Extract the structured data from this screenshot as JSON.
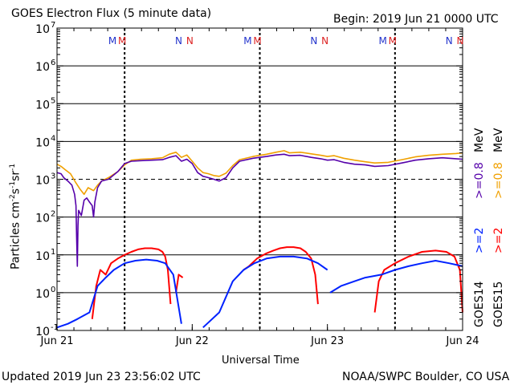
{
  "header": {
    "title": "GOES Electron Flux (5 minute data)",
    "begin": "Begin: 2019 Jun 21 0000 UTC"
  },
  "footer": {
    "updated": "Updated 2019 Jun 23 23:56:02 UTC",
    "credit": "NOAA/SWPC Boulder, CO USA"
  },
  "colors": {
    "goes14_high": "#5500aa",
    "goes15_high": "#f0a000",
    "goes14_low": "#0022ff",
    "goes15_low": "#ff0000",
    "marker_m14": "#2233cc",
    "marker_m15": "#dd2222"
  },
  "legend": {
    "goes14_label": "GOES14",
    "goes15_label": "GOES15",
    "goes14_low": ">=2",
    "goes15_low": ">=2",
    "goes14_high": ">=0.8",
    "goes15_high": ">=0.8",
    "unit": "MeV"
  },
  "chart_data": {
    "type": "line",
    "title": "GOES Electron Flux (5 minute data)",
    "xlabel": "Universal Time",
    "ylabel": "Particles cm-2s-1sr-1",
    "y_scale": "log",
    "ylim": [
      0.1,
      10000000
    ],
    "x_range_days": [
      0,
      3
    ],
    "x_ticks": [
      {
        "day": 0,
        "label": "Jun 21"
      },
      {
        "day": 1,
        "label": "Jun 22"
      },
      {
        "day": 2,
        "label": "Jun 23"
      },
      {
        "day": 3,
        "label": "Jun 24"
      }
    ],
    "y_ticks": [
      {
        "exp": -1,
        "label": "10"
      },
      {
        "exp": 0,
        "label": "10"
      },
      {
        "exp": 1,
        "label": "10"
      },
      {
        "exp": 2,
        "label": "10"
      },
      {
        "exp": 3,
        "label": "10"
      },
      {
        "exp": 4,
        "label": "10"
      },
      {
        "exp": 5,
        "label": "10"
      },
      {
        "exp": 6,
        "label": "10"
      },
      {
        "exp": 7,
        "label": "10"
      }
    ],
    "alert_threshold": 1000,
    "grid": "horizontal per decade",
    "noon_lines_days": [
      0.5,
      1.5,
      2.5
    ],
    "local_markers": [
      {
        "day": 0.44,
        "label": "M",
        "sat": "GOES14"
      },
      {
        "day": 0.5,
        "label": "M",
        "sat": "GOES15"
      },
      {
        "day": 0.93,
        "label": "N",
        "sat": "GOES14"
      },
      {
        "day": 1.0,
        "label": "N",
        "sat": "GOES15"
      },
      {
        "day": 1.44,
        "label": "M",
        "sat": "GOES14"
      },
      {
        "day": 1.5,
        "label": "M",
        "sat": "GOES15"
      },
      {
        "day": 1.93,
        "label": "N",
        "sat": "GOES14"
      },
      {
        "day": 2.0,
        "label": "N",
        "sat": "GOES15"
      },
      {
        "day": 2.44,
        "label": "M",
        "sat": "GOES14"
      },
      {
        "day": 2.5,
        "label": "M",
        "sat": "GOES15"
      },
      {
        "day": 2.93,
        "label": "N",
        "sat": "GOES14"
      },
      {
        "day": 3.0,
        "label": "N",
        "sat": "GOES15"
      }
    ],
    "series": [
      {
        "name": "GOES15 >=0.8 MeV",
        "color": "#f0a000",
        "points": [
          [
            0,
            2500
          ],
          [
            0.03,
            2200
          ],
          [
            0.06,
            1800
          ],
          [
            0.1,
            1400
          ],
          [
            0.14,
            800
          ],
          [
            0.17,
            550
          ],
          [
            0.2,
            400
          ],
          [
            0.23,
            600
          ],
          [
            0.27,
            500
          ],
          [
            0.3,
            700
          ],
          [
            0.33,
            900
          ],
          [
            0.38,
            1100
          ],
          [
            0.45,
            1600
          ],
          [
            0.5,
            2400
          ],
          [
            0.55,
            3200
          ],
          [
            0.62,
            3400
          ],
          [
            0.7,
            3500
          ],
          [
            0.78,
            3700
          ],
          [
            0.83,
            4600
          ],
          [
            0.88,
            5200
          ],
          [
            0.92,
            3800
          ],
          [
            0.96,
            4400
          ],
          [
            1.0,
            3000
          ],
          [
            1.04,
            2000
          ],
          [
            1.08,
            1500
          ],
          [
            1.12,
            1400
          ],
          [
            1.16,
            1250
          ],
          [
            1.2,
            1200
          ],
          [
            1.25,
            1450
          ],
          [
            1.3,
            2300
          ],
          [
            1.35,
            3300
          ],
          [
            1.45,
            4000
          ],
          [
            1.55,
            4600
          ],
          [
            1.62,
            5200
          ],
          [
            1.68,
            5700
          ],
          [
            1.72,
            5000
          ],
          [
            1.8,
            5200
          ],
          [
            1.88,
            4700
          ],
          [
            1.95,
            4300
          ],
          [
            2.0,
            4000
          ],
          [
            2.05,
            4200
          ],
          [
            2.12,
            3600
          ],
          [
            2.2,
            3200
          ],
          [
            2.28,
            2900
          ],
          [
            2.35,
            2700
          ],
          [
            2.45,
            2800
          ],
          [
            2.55,
            3300
          ],
          [
            2.65,
            3900
          ],
          [
            2.75,
            4300
          ],
          [
            2.85,
            4600
          ],
          [
            2.95,
            4800
          ],
          [
            3.0,
            5000
          ]
        ]
      },
      {
        "name": "GOES14 >=0.8 MeV",
        "color": "#5500aa",
        "points": [
          [
            0,
            1500
          ],
          [
            0.03,
            1400
          ],
          [
            0.05,
            1100
          ],
          [
            0.08,
            900
          ],
          [
            0.11,
            700
          ],
          [
            0.13,
            400
          ],
          [
            0.14,
            200
          ],
          [
            0.145,
            30
          ],
          [
            0.15,
            5
          ],
          [
            0.155,
            60
          ],
          [
            0.16,
            150
          ],
          [
            0.18,
            110
          ],
          [
            0.2,
            280
          ],
          [
            0.22,
            320
          ],
          [
            0.24,
            250
          ],
          [
            0.26,
            200
          ],
          [
            0.27,
            100
          ],
          [
            0.28,
            250
          ],
          [
            0.3,
            600
          ],
          [
            0.33,
            900
          ],
          [
            0.38,
            1000
          ],
          [
            0.45,
            1600
          ],
          [
            0.5,
            2600
          ],
          [
            0.55,
            3000
          ],
          [
            0.62,
            3100
          ],
          [
            0.7,
            3200
          ],
          [
            0.78,
            3300
          ],
          [
            0.83,
            3800
          ],
          [
            0.88,
            4200
          ],
          [
            0.92,
            3000
          ],
          [
            0.96,
            3400
          ],
          [
            1.0,
            2600
          ],
          [
            1.04,
            1500
          ],
          [
            1.08,
            1200
          ],
          [
            1.12,
            1100
          ],
          [
            1.16,
            1000
          ],
          [
            1.2,
            900
          ],
          [
            1.25,
            1100
          ],
          [
            1.3,
            2000
          ],
          [
            1.35,
            3000
          ],
          [
            1.45,
            3600
          ],
          [
            1.55,
            4000
          ],
          [
            1.62,
            4400
          ],
          [
            1.68,
            4600
          ],
          [
            1.72,
            4200
          ],
          [
            1.8,
            4300
          ],
          [
            1.88,
            3800
          ],
          [
            1.95,
            3500
          ],
          [
            2.0,
            3200
          ],
          [
            2.05,
            3300
          ],
          [
            2.12,
            2800
          ],
          [
            2.2,
            2500
          ],
          [
            2.28,
            2400
          ],
          [
            2.35,
            2200
          ],
          [
            2.45,
            2300
          ],
          [
            2.55,
            2700
          ],
          [
            2.65,
            3200
          ],
          [
            2.75,
            3500
          ],
          [
            2.85,
            3700
          ],
          [
            2.95,
            3500
          ],
          [
            3.0,
            3400
          ]
        ]
      },
      {
        "name": "GOES15 >=2 MeV",
        "color": "#ff0000",
        "segments": [
          [
            [
              0.26,
              0.2
            ],
            [
              0.29,
              1.5
            ],
            [
              0.32,
              4
            ],
            [
              0.36,
              3
            ],
            [
              0.4,
              6
            ],
            [
              0.45,
              8
            ],
            [
              0.5,
              10
            ],
            [
              0.55,
              12
            ],
            [
              0.6,
              14
            ],
            [
              0.65,
              15
            ],
            [
              0.7,
              15
            ],
            [
              0.75,
              14
            ],
            [
              0.78,
              12
            ],
            [
              0.8,
              9
            ],
            [
              0.82,
              4
            ],
            [
              0.84,
              0.5
            ]
          ],
          [
            [
              0.88,
              1
            ],
            [
              0.9,
              3
            ],
            [
              0.93,
              2.5
            ]
          ],
          [
            [
              1.38,
              4
            ],
            [
              1.42,
              5
            ],
            [
              1.48,
              8
            ],
            [
              1.55,
              11
            ],
            [
              1.6,
              13
            ],
            [
              1.65,
              15
            ],
            [
              1.7,
              16
            ],
            [
              1.75,
              16
            ],
            [
              1.8,
              15
            ],
            [
              1.84,
              12
            ],
            [
              1.88,
              8
            ],
            [
              1.91,
              3
            ],
            [
              1.93,
              0.5
            ]
          ],
          [
            [
              2.35,
              0.3
            ],
            [
              2.38,
              2
            ],
            [
              2.42,
              4
            ],
            [
              2.5,
              6
            ],
            [
              2.6,
              9
            ],
            [
              2.7,
              12
            ],
            [
              2.8,
              13
            ],
            [
              2.88,
              12
            ],
            [
              2.94,
              9
            ],
            [
              2.98,
              4
            ],
            [
              3.0,
              0.3
            ]
          ]
        ]
      },
      {
        "name": "GOES14 >=2 MeV",
        "color": "#0022ff",
        "segments": [
          [
            [
              0,
              0.12
            ],
            [
              0.08,
              0.15
            ],
            [
              0.15,
              0.2
            ],
            [
              0.24,
              0.3
            ],
            [
              0.3,
              1.5
            ],
            [
              0.36,
              2.5
            ],
            [
              0.42,
              4
            ],
            [
              0.5,
              6
            ],
            [
              0.58,
              7
            ],
            [
              0.66,
              7.5
            ],
            [
              0.74,
              7
            ],
            [
              0.8,
              6
            ],
            [
              0.86,
              3
            ],
            [
              0.92,
              0.15
            ]
          ],
          [
            [
              1.08,
              0.12
            ],
            [
              1.2,
              0.3
            ],
            [
              1.3,
              2
            ],
            [
              1.38,
              4
            ],
            [
              1.46,
              6
            ],
            [
              1.55,
              8
            ],
            [
              1.65,
              9
            ],
            [
              1.75,
              9
            ],
            [
              1.85,
              8
            ],
            [
              1.93,
              6
            ],
            [
              2.0,
              4
            ]
          ],
          [
            [
              2.02,
              1
            ],
            [
              2.1,
              1.5
            ],
            [
              2.2,
              2
            ],
            [
              2.28,
              2.5
            ],
            [
              2.4,
              3
            ],
            [
              2.5,
              4
            ],
            [
              2.6,
              5
            ],
            [
              2.7,
              6
            ],
            [
              2.8,
              7
            ],
            [
              2.9,
              6
            ],
            [
              3.0,
              5
            ]
          ]
        ]
      }
    ]
  }
}
